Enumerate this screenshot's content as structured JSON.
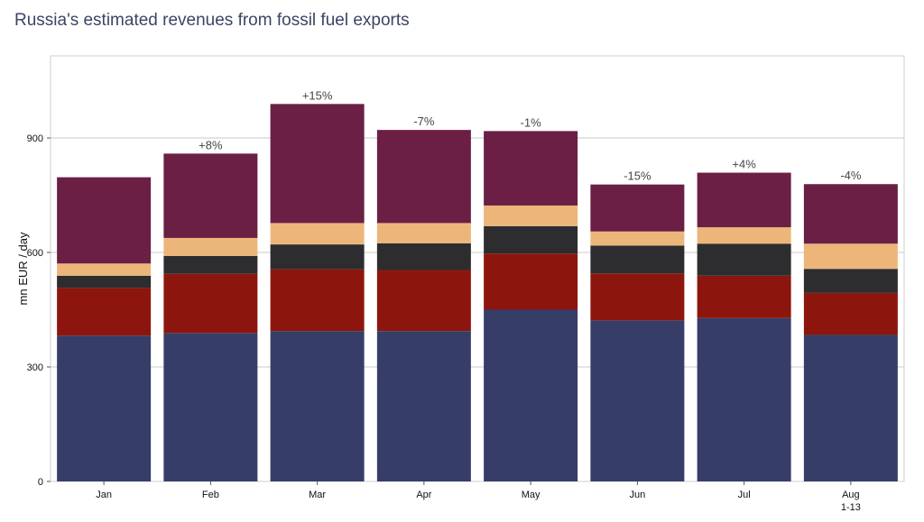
{
  "title": "Russia's estimated revenues from fossil fuel exports",
  "chart_data": {
    "type": "bar",
    "stacked": true,
    "title": "Russia's estimated revenues from fossil fuel exports",
    "xlabel": "",
    "ylabel": "mn EUR / day",
    "ylim": [
      0,
      1115
    ],
    "yticks": [
      0,
      300,
      600,
      900
    ],
    "grid": true,
    "categories": [
      "Jan",
      "Feb",
      "Mar",
      "Apr",
      "May",
      "Jun",
      "Jul",
      "Aug"
    ],
    "category_sublabels": [
      "",
      "",
      "",
      "",
      "",
      "",
      "",
      "1-13"
    ],
    "change_labels": [
      "",
      "+8%",
      "+15%",
      "-7%",
      "-1%",
      "-15%",
      "+4%",
      "-4%"
    ],
    "series": [
      {
        "color": "#363e68",
        "values": [
          382,
          389,
          394,
          394,
          450,
          422,
          428,
          384
        ]
      },
      {
        "color": "#8c160e",
        "values": [
          125,
          155,
          162,
          160,
          147,
          123,
          111,
          110
        ]
      },
      {
        "color": "#2d2d2f",
        "values": [
          32,
          47,
          65,
          70,
          72,
          73,
          84,
          63
        ]
      },
      {
        "color": "#ecb67a",
        "values": [
          32,
          47,
          56,
          53,
          54,
          37,
          43,
          66
        ]
      },
      {
        "color": "#6b1f45",
        "values": [
          226,
          221,
          312,
          244,
          195,
          123,
          143,
          156
        ]
      }
    ]
  }
}
